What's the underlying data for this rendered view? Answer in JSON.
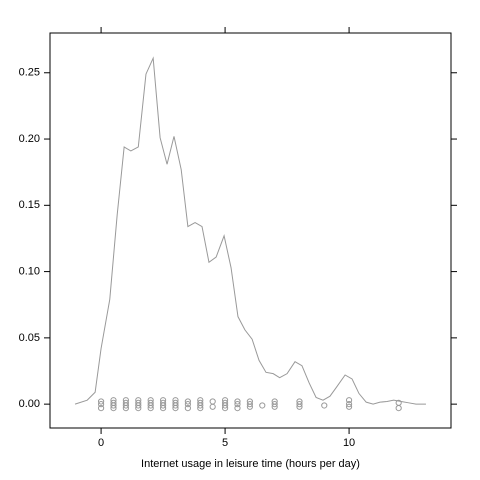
{
  "chart_data": {
    "type": "line",
    "xlabel": "Internet usage in leisure time (hours per day)",
    "xlim": [
      -2.06,
      14.11
    ],
    "ylim": [
      -0.018,
      0.28
    ],
    "xticks": [
      0,
      5,
      10
    ],
    "yticks": [
      {
        "value": 0,
        "label": "0.00"
      },
      {
        "value": 0.05,
        "label": "0.05"
      },
      {
        "value": 0.1,
        "label": "0.10"
      },
      {
        "value": 0.15,
        "label": "0.15"
      },
      {
        "value": 0.2,
        "label": "0.20"
      },
      {
        "value": 0.25,
        "label": "0.25"
      }
    ],
    "series": [
      {
        "color": "#999999",
        "x": [
          -1.05,
          -0.56,
          -0.24,
          0,
          0.35,
          0.65,
          0.93,
          1.2,
          1.5,
          1.81,
          2.1,
          2.38,
          2.66,
          2.94,
          3.23,
          3.5,
          3.79,
          4.07,
          4.35,
          4.64,
          4.96,
          5.24,
          5.52,
          5.8,
          6.09,
          6.37,
          6.65,
          6.94,
          7.2,
          7.5,
          7.82,
          8.1,
          8.39,
          8.67,
          8.95,
          9.23,
          9.5,
          9.84,
          10.12,
          10.4,
          10.69,
          10.97,
          11.25,
          11.53,
          11.8,
          12.1,
          12.4,
          12.7,
          13.1
        ],
        "values": [
          0,
          0.003,
          0.009,
          0.042,
          0.079,
          0.143,
          0.194,
          0.191,
          0.194,
          0.249,
          0.261,
          0.201,
          0.181,
          0.202,
          0.177,
          0.134,
          0.137,
          0.134,
          0.107,
          0.111,
          0.127,
          0.103,
          0.066,
          0.056,
          0.049,
          0.033,
          0.024,
          0.023,
          0.02,
          0.023,
          0.032,
          0.029,
          0.016,
          0.005,
          0.003,
          0.006,
          0.013,
          0.022,
          0.019,
          0.008,
          0.0015,
          0,
          0.0015,
          0.002,
          0.003,
          0.002,
          0.001,
          0,
          0
        ]
      },
      {
        "type": "scatter",
        "color": "#999999",
        "x": [
          0,
          0,
          0,
          0.5,
          0.5,
          0.5,
          0.5,
          1,
          1,
          1,
          1,
          1.5,
          1.5,
          1.5,
          1.5,
          2,
          2,
          2,
          2,
          2.5,
          2.5,
          2.5,
          2.5,
          3,
          3,
          3,
          3,
          3.5,
          3.5,
          3.5,
          4,
          4,
          4,
          4,
          4.5,
          4.5,
          5,
          5,
          5,
          5,
          5.5,
          5.5,
          5.5,
          6,
          6,
          6,
          6.5,
          7,
          7,
          7,
          8,
          8,
          8,
          9,
          10,
          10,
          10,
          12,
          12
        ],
        "values": [
          0.002,
          0,
          -0.003,
          0.003,
          0.001,
          -0.001,
          -0.003,
          0.003,
          0.001,
          -0.001,
          -0.003,
          0.003,
          0.001,
          -0.001,
          -0.003,
          0.003,
          0.001,
          -0.001,
          -0.003,
          0.003,
          0.001,
          -0.001,
          -0.003,
          0.003,
          0.001,
          -0.001,
          -0.003,
          0.002,
          0,
          -0.003,
          0.003,
          0.001,
          -0.001,
          -0.003,
          0.002,
          -0.002,
          0.003,
          0.001,
          -0.001,
          -0.003,
          0.002,
          0,
          -0.003,
          0.002,
          0,
          -0.002,
          -0.001,
          0.002,
          0,
          -0.002,
          0.002,
          0,
          -0.002,
          -0.001,
          0.003,
          0,
          -0.002,
          0.001,
          -0.003
        ]
      }
    ]
  }
}
